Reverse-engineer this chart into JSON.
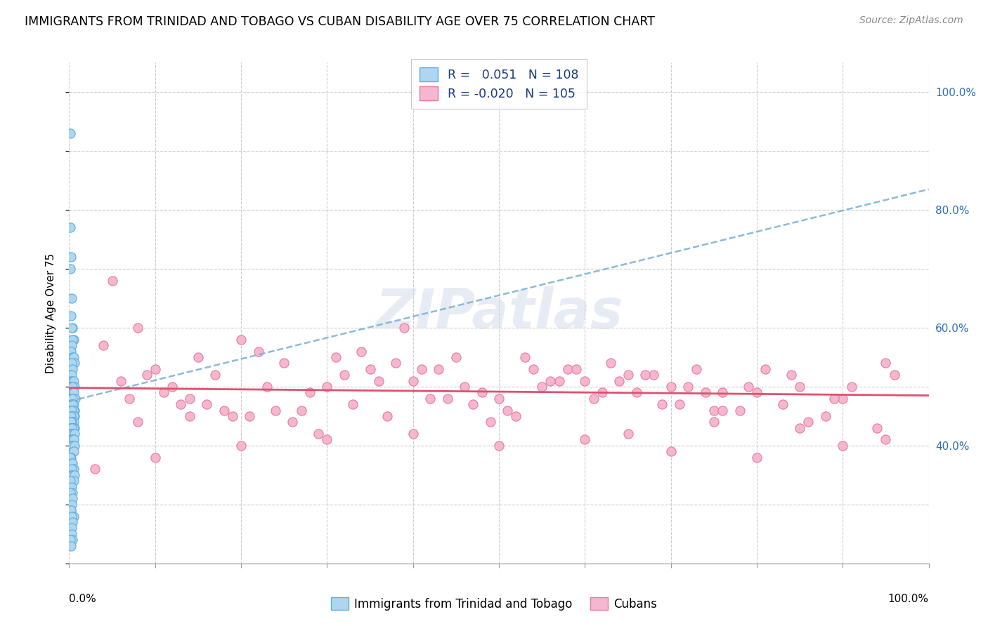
{
  "title": "IMMIGRANTS FROM TRINIDAD AND TOBAGO VS CUBAN DISABILITY AGE OVER 75 CORRELATION CHART",
  "source": "Source: ZipAtlas.com",
  "ylabel": "Disability Age Over 75",
  "legend_label1": "Immigrants from Trinidad and Tobago",
  "legend_label2": "Cubans",
  "r1": 0.051,
  "n1": 108,
  "r2": -0.02,
  "n2": 105,
  "color1": "#aed6f1",
  "color2": "#f5b7d0",
  "edge1": "#5dade2",
  "edge2": "#e8799a",
  "trend1_color": "#7fb3d3",
  "trend2_color": "#e05070",
  "watermark_text": "ZIPatlas",
  "xlim": [
    0.0,
    1.0
  ],
  "ylim": [
    0.2,
    1.05
  ],
  "yticks": [
    0.4,
    0.6,
    0.8,
    1.0
  ],
  "ytick_labels": [
    "40.0%",
    "60.0%",
    "80.0%",
    "100.0%"
  ],
  "blue_x": [
    0.001,
    0.001,
    0.002,
    0.001,
    0.003,
    0.002,
    0.004,
    0.003,
    0.005,
    0.004,
    0.003,
    0.002,
    0.004,
    0.005,
    0.006,
    0.003,
    0.004,
    0.002,
    0.003,
    0.001,
    0.004,
    0.005,
    0.002,
    0.001,
    0.003,
    0.006,
    0.004,
    0.003,
    0.002,
    0.004,
    0.005,
    0.007,
    0.002,
    0.001,
    0.003,
    0.004,
    0.005,
    0.003,
    0.002,
    0.004,
    0.006,
    0.005,
    0.002,
    0.001,
    0.003,
    0.004,
    0.005,
    0.003,
    0.002,
    0.004,
    0.006,
    0.005,
    0.002,
    0.001,
    0.003,
    0.004,
    0.005,
    0.003,
    0.002,
    0.004,
    0.006,
    0.005,
    0.002,
    0.001,
    0.003,
    0.004,
    0.005,
    0.003,
    0.002,
    0.004,
    0.006,
    0.005,
    0.002,
    0.001,
    0.003,
    0.004,
    0.005,
    0.003,
    0.002,
    0.004,
    0.006,
    0.005,
    0.002,
    0.001,
    0.003,
    0.004,
    0.005,
    0.003,
    0.002,
    0.004,
    0.006,
    0.005,
    0.001,
    0.003,
    0.004,
    0.001,
    0.004,
    0.003,
    0.002,
    0.002,
    0.005,
    0.003,
    0.004,
    0.003,
    0.003,
    0.004,
    0.001,
    0.002
  ],
  "blue_y": [
    0.93,
    0.77,
    0.72,
    0.7,
    0.65,
    0.62,
    0.6,
    0.6,
    0.58,
    0.58,
    0.57,
    0.56,
    0.55,
    0.55,
    0.54,
    0.54,
    0.53,
    0.52,
    0.52,
    0.51,
    0.51,
    0.51,
    0.5,
    0.5,
    0.5,
    0.5,
    0.5,
    0.49,
    0.49,
    0.49,
    0.49,
    0.48,
    0.48,
    0.48,
    0.48,
    0.48,
    0.47,
    0.47,
    0.47,
    0.47,
    0.46,
    0.46,
    0.46,
    0.46,
    0.46,
    0.46,
    0.46,
    0.46,
    0.45,
    0.45,
    0.45,
    0.45,
    0.45,
    0.44,
    0.44,
    0.44,
    0.44,
    0.44,
    0.44,
    0.43,
    0.43,
    0.43,
    0.43,
    0.43,
    0.43,
    0.42,
    0.42,
    0.42,
    0.42,
    0.42,
    0.42,
    0.41,
    0.41,
    0.41,
    0.41,
    0.41,
    0.41,
    0.4,
    0.4,
    0.4,
    0.4,
    0.39,
    0.38,
    0.38,
    0.37,
    0.37,
    0.36,
    0.36,
    0.35,
    0.35,
    0.35,
    0.34,
    0.34,
    0.33,
    0.32,
    0.32,
    0.31,
    0.3,
    0.29,
    0.29,
    0.28,
    0.28,
    0.27,
    0.26,
    0.25,
    0.24,
    0.24,
    0.23
  ],
  "pink_x": [
    0.05,
    0.08,
    0.1,
    0.12,
    0.04,
    0.15,
    0.07,
    0.09,
    0.2,
    0.13,
    0.06,
    0.18,
    0.25,
    0.11,
    0.3,
    0.17,
    0.08,
    0.22,
    0.14,
    0.35,
    0.19,
    0.4,
    0.28,
    0.16,
    0.45,
    0.23,
    0.32,
    0.5,
    0.38,
    0.27,
    0.55,
    0.43,
    0.21,
    0.6,
    0.48,
    0.33,
    0.65,
    0.53,
    0.26,
    0.7,
    0.42,
    0.58,
    0.75,
    0.36,
    0.63,
    0.8,
    0.47,
    0.68,
    0.85,
    0.52,
    0.73,
    0.9,
    0.57,
    0.78,
    0.95,
    0.62,
    0.83,
    0.67,
    0.72,
    0.88,
    0.39,
    0.29,
    0.54,
    0.44,
    0.34,
    0.64,
    0.49,
    0.74,
    0.24,
    0.59,
    0.79,
    0.14,
    0.69,
    0.84,
    0.89,
    0.94,
    0.31,
    0.46,
    0.76,
    0.41,
    0.66,
    0.86,
    0.56,
    0.71,
    0.96,
    0.91,
    0.37,
    0.61,
    0.81,
    0.51,
    0.76,
    0.03,
    0.1,
    0.2,
    0.3,
    0.4,
    0.5,
    0.6,
    0.7,
    0.8,
    0.9,
    0.95,
    0.85,
    0.75,
    0.65
  ],
  "pink_y": [
    0.68,
    0.6,
    0.53,
    0.5,
    0.57,
    0.55,
    0.48,
    0.52,
    0.58,
    0.47,
    0.51,
    0.46,
    0.54,
    0.49,
    0.5,
    0.52,
    0.44,
    0.56,
    0.48,
    0.53,
    0.45,
    0.51,
    0.49,
    0.47,
    0.55,
    0.5,
    0.52,
    0.48,
    0.54,
    0.46,
    0.5,
    0.53,
    0.45,
    0.51,
    0.49,
    0.47,
    0.52,
    0.55,
    0.44,
    0.5,
    0.48,
    0.53,
    0.46,
    0.51,
    0.54,
    0.49,
    0.47,
    0.52,
    0.5,
    0.45,
    0.53,
    0.48,
    0.51,
    0.46,
    0.54,
    0.49,
    0.47,
    0.52,
    0.5,
    0.45,
    0.6,
    0.42,
    0.53,
    0.48,
    0.56,
    0.51,
    0.44,
    0.49,
    0.46,
    0.53,
    0.5,
    0.45,
    0.47,
    0.52,
    0.48,
    0.43,
    0.55,
    0.5,
    0.46,
    0.53,
    0.49,
    0.44,
    0.51,
    0.47,
    0.52,
    0.5,
    0.45,
    0.48,
    0.53,
    0.46,
    0.49,
    0.36,
    0.38,
    0.4,
    0.41,
    0.42,
    0.4,
    0.41,
    0.39,
    0.38,
    0.4,
    0.41,
    0.43,
    0.44,
    0.42
  ],
  "blue_trend_x0": 0.0,
  "blue_trend_y0": 0.475,
  "blue_trend_x1": 1.0,
  "blue_trend_y1": 0.835,
  "pink_trend_x0": 0.0,
  "pink_trend_y0": 0.498,
  "pink_trend_x1": 1.0,
  "pink_trend_y1": 0.485
}
